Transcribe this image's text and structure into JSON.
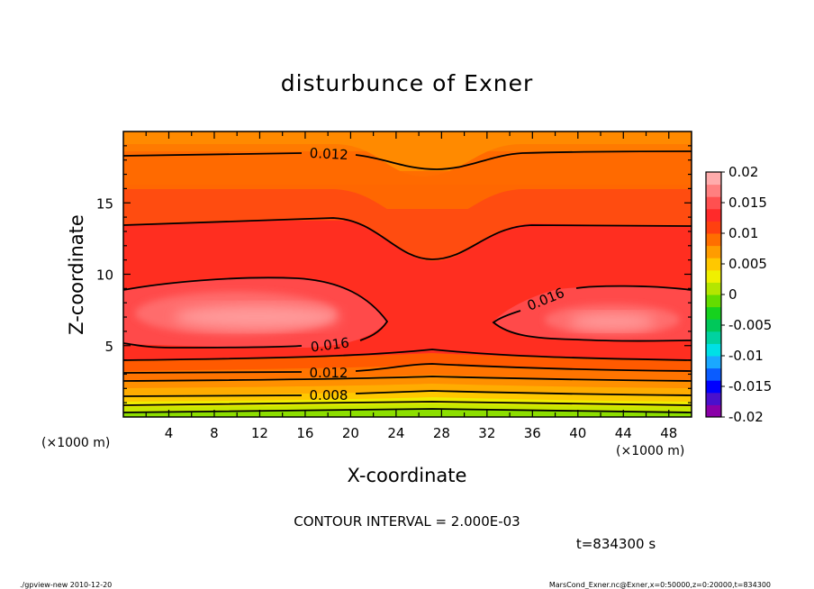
{
  "chart_data": {
    "type": "heatmap",
    "title": "disturbunce of Exner",
    "xlabel": "X-coordinate",
    "ylabel": "Z-coordinate",
    "x_unit": "(×1000 m)",
    "x_ticks": [
      4,
      8,
      12,
      16,
      20,
      24,
      28,
      32,
      36,
      40,
      44,
      48
    ],
    "y_ticks": [
      5,
      10,
      15
    ],
    "xlim": [
      0,
      50
    ],
    "ylim": [
      0,
      20
    ],
    "contour_labels": [
      "0.012",
      "0.016",
      "0.016",
      "0.012",
      "0.008"
    ],
    "contour_interval_text": "CONTOUR INTERVAL = 2.000E-03",
    "time_text": "t=834300 s",
    "colorbar": {
      "ticks": [
        "0.02",
        "0.015",
        "0.01",
        "0.005",
        "0",
        "-0.005",
        "-0.01",
        "-0.015",
        "-0.02"
      ],
      "range": [
        -0.02,
        0.02
      ],
      "colors": [
        "#8a00a8",
        "#4a10cc",
        "#0000ff",
        "#0a5cff",
        "#1aa8ff",
        "#00e0e6",
        "#00d2a0",
        "#00c85a",
        "#16d21e",
        "#64dc00",
        "#b4e600",
        "#f0f000",
        "#ffc800",
        "#ff9c00",
        "#ff6e00",
        "#ff4010",
        "#ff2a2a",
        "#ff5050",
        "#ff8080",
        "#ffacac"
      ]
    }
  },
  "footer": {
    "left": "./gpview-new   2010-12-20",
    "right": "MarsCond_Exner.nc@Exner,x=0:50000,z=0:20000,t=834300"
  }
}
